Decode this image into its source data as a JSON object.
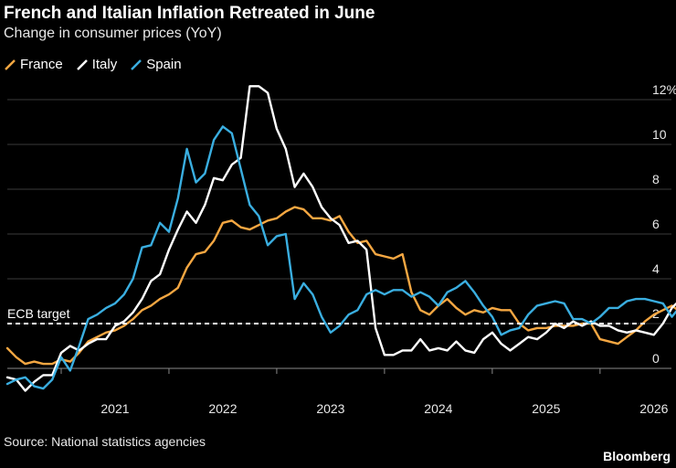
{
  "title": "French and Italian Inflation Retreated in June",
  "subtitle": "Change in consumer prices (YoY)",
  "source": "Source: National statistics agencies",
  "brand": "Bloomberg",
  "chart_data": {
    "type": "line",
    "title": "French and Italian Inflation Retreated in June",
    "subtitle": "Change in consumer prices (YoY)",
    "x_start": "2020-07",
    "x_end": "2026-06",
    "x_frequency": "monthly",
    "x_ticks": [
      "2021",
      "2022",
      "2023",
      "2024",
      "2025",
      "2026"
    ],
    "y_ticks": [
      "0",
      "2",
      "4",
      "6",
      "8",
      "10",
      "12%"
    ],
    "y_tick_values": [
      0,
      2,
      4,
      6,
      8,
      10,
      12
    ],
    "ylim": [
      -1.2,
      12.8
    ],
    "grid": "horizontal",
    "legend": "top-left",
    "reference_line": {
      "label": "ECB target",
      "value": 2.0
    },
    "series": [
      {
        "name": "France",
        "color": "#f5a742",
        "values": [
          0.9,
          0.5,
          0.2,
          0.3,
          0.2,
          0.2,
          0.4,
          0.3,
          0.7,
          1.2,
          1.4,
          1.6,
          1.7,
          1.9,
          2.2,
          2.6,
          2.8,
          3.1,
          3.3,
          3.6,
          4.5,
          5.1,
          5.2,
          5.7,
          6.5,
          6.6,
          6.3,
          6.2,
          6.4,
          6.6,
          6.7,
          7.0,
          7.2,
          7.1,
          6.7,
          6.7,
          6.6,
          6.8,
          6.1,
          5.6,
          5.7,
          5.1,
          5.0,
          4.9,
          5.1,
          3.4,
          2.6,
          2.4,
          2.8,
          3.1,
          2.7,
          2.4,
          2.6,
          2.5,
          2.7,
          2.6,
          2.6,
          2.0,
          1.7,
          1.8,
          1.8,
          1.9,
          1.9,
          1.9,
          2.0,
          2.0,
          1.3,
          1.2,
          1.1,
          1.4,
          1.7,
          2.1,
          2.4,
          2.6,
          2.8,
          2.5,
          2.2,
          2.0
        ]
      },
      {
        "name": "Italy",
        "color": "#ffffff",
        "values": [
          -0.4,
          -0.5,
          -1.0,
          -0.6,
          -0.3,
          -0.3,
          0.7,
          1.0,
          0.8,
          1.1,
          1.3,
          1.3,
          1.9,
          2.1,
          2.5,
          3.1,
          3.9,
          4.2,
          5.3,
          6.2,
          7.0,
          6.5,
          7.3,
          8.5,
          8.4,
          9.1,
          9.4,
          12.6,
          12.6,
          12.3,
          10.7,
          9.8,
          8.1,
          8.7,
          8.1,
          7.2,
          6.7,
          6.4,
          5.6,
          5.7,
          5.3,
          1.8,
          0.6,
          0.6,
          0.8,
          0.8,
          1.3,
          0.8,
          0.9,
          0.8,
          1.2,
          0.8,
          0.7,
          1.3,
          1.6,
          1.1,
          0.8,
          1.1,
          1.4,
          1.3,
          1.6,
          2.0,
          1.8,
          2.1,
          1.9,
          2.1,
          1.9,
          1.9,
          1.7,
          1.6,
          1.7,
          1.6,
          1.5,
          2.0,
          2.7,
          3.1,
          3.1,
          3.0
        ]
      },
      {
        "name": "Spain",
        "color": "#3aaee0",
        "values": [
          -0.7,
          -0.5,
          -0.4,
          -0.8,
          -0.9,
          -0.5,
          0.5,
          -0.1,
          1.0,
          2.2,
          2.4,
          2.7,
          2.9,
          3.3,
          4.0,
          5.4,
          5.5,
          6.5,
          6.1,
          7.6,
          9.8,
          8.3,
          8.7,
          10.2,
          10.8,
          10.5,
          8.9,
          7.3,
          6.8,
          5.5,
          5.9,
          6.0,
          3.1,
          3.8,
          3.3,
          2.3,
          1.6,
          1.9,
          2.4,
          2.6,
          3.3,
          3.5,
          3.3,
          3.5,
          3.5,
          3.2,
          3.4,
          3.2,
          2.8,
          3.4,
          3.6,
          3.9,
          3.4,
          2.8,
          2.3,
          1.5,
          1.7,
          1.8,
          2.4,
          2.8,
          2.9,
          3.0,
          2.9,
          2.2,
          2.2,
          2.0,
          2.3,
          2.7,
          2.7,
          3.0,
          3.1,
          3.1,
          3.0,
          2.9,
          2.3,
          2.8,
          3.2,
          3.4
        ]
      }
    ]
  }
}
